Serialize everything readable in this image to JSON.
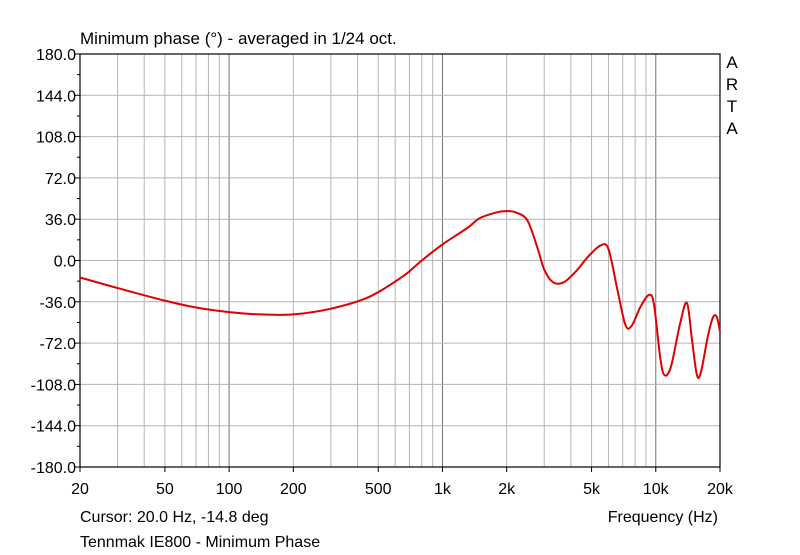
{
  "chart_data": {
    "type": "line",
    "title": "Minimum phase (°) - averaged in 1/24 oct.",
    "xlabel": "Frequency (Hz)",
    "ylabel": "",
    "xscale": "log",
    "xlim": [
      20,
      20000
    ],
    "ylim": [
      -180,
      180
    ],
    "grid": true,
    "y_ticks": [
      "180.0",
      "144.0",
      "108.0",
      "72.0",
      "36.0",
      "0.0",
      "-36.0",
      "-72.0",
      "-108.0",
      "-144.0",
      "-180.0"
    ],
    "x_tick_labels": [
      {
        "value": 20,
        "label": "20"
      },
      {
        "value": 50,
        "label": "50"
      },
      {
        "value": 100,
        "label": "100"
      },
      {
        "value": 200,
        "label": "200"
      },
      {
        "value": 500,
        "label": "500"
      },
      {
        "value": 1000,
        "label": "1k"
      },
      {
        "value": 2000,
        "label": "2k"
      },
      {
        "value": 5000,
        "label": "5k"
      },
      {
        "value": 10000,
        "label": "10k"
      },
      {
        "value": 20000,
        "label": "20k"
      }
    ],
    "series": [
      {
        "color": "#e00000",
        "points": [
          [
            20,
            -14.8
          ],
          [
            30,
            -24
          ],
          [
            50,
            -35
          ],
          [
            70,
            -41
          ],
          [
            100,
            -45
          ],
          [
            140,
            -47
          ],
          [
            200,
            -47
          ],
          [
            300,
            -42
          ],
          [
            450,
            -32
          ],
          [
            650,
            -14
          ],
          [
            800,
            0
          ],
          [
            1000,
            14
          ],
          [
            1300,
            28
          ],
          [
            1500,
            37
          ],
          [
            1800,
            42
          ],
          [
            2000,
            43
          ],
          [
            2200,
            42
          ],
          [
            2500,
            35
          ],
          [
            2800,
            10
          ],
          [
            3000,
            -8
          ],
          [
            3300,
            -19
          ],
          [
            3700,
            -19
          ],
          [
            4200,
            -10
          ],
          [
            4800,
            3
          ],
          [
            5500,
            13
          ],
          [
            6000,
            10
          ],
          [
            6600,
            -25
          ],
          [
            7200,
            -56
          ],
          [
            7700,
            -57
          ],
          [
            8500,
            -40
          ],
          [
            9300,
            -30
          ],
          [
            9800,
            -38
          ],
          [
            10500,
            -85
          ],
          [
            11000,
            -100
          ],
          [
            11800,
            -92
          ],
          [
            13000,
            -55
          ],
          [
            14000,
            -37
          ],
          [
            14800,
            -70
          ],
          [
            15600,
            -100
          ],
          [
            16300,
            -97
          ],
          [
            17500,
            -67
          ],
          [
            18500,
            -50
          ],
          [
            19300,
            -49
          ],
          [
            20000,
            -62
          ]
        ]
      }
    ]
  },
  "brand": [
    "A",
    "R",
    "T",
    "A"
  ],
  "cursor_text": "Cursor: 20.0 Hz, -14.8 deg",
  "footer_label": "Tennmak IE800 - Minimum Phase"
}
